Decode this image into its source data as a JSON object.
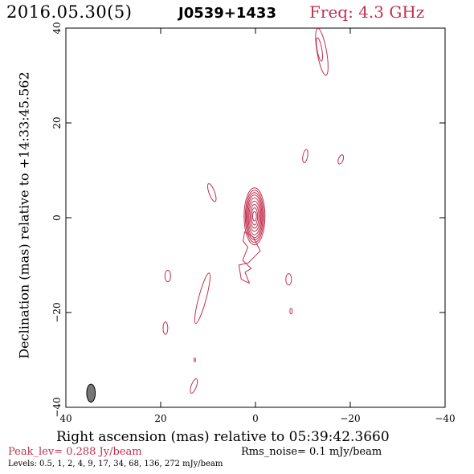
{
  "header": {
    "date": "2016.05.30(5)",
    "source": "J0539+1433",
    "freq": "Freq: 4.3 GHz"
  },
  "footer": {
    "peak": "Peak_lev=  0.288 Jy/beam",
    "rms": "Rms_noise=  0.1 mJy/beam",
    "levels": "Levels: 0.5,   1,   2,   4,   9,   17,   34,   68, 136, 272 mJy/beam"
  },
  "chart_data": {
    "type": "contour",
    "title": "J0539+1433",
    "xlabel": "Right ascension (mas) relative to 05:39:42.3660",
    "ylabel": "Declination (mas) relative to +14:33:45.562",
    "xlim": [
      40,
      -40
    ],
    "ylim": [
      -40,
      40
    ],
    "x_ticks": [
      40,
      20,
      0,
      -20,
      -40
    ],
    "y_ticks": [
      -40,
      -20,
      0,
      20,
      40
    ],
    "peak_jy_per_beam": 0.288,
    "rms_noise_mjy_per_beam": 0.1,
    "levels_mjy_per_beam": [
      0.5,
      1,
      2,
      4,
      9,
      17,
      34,
      68,
      136,
      272
    ],
    "contour_color": "#c2304f",
    "core": {
      "x": 0.2,
      "y": 0.3,
      "rings": [
        {
          "rx": 2.2,
          "ry": 6.0
        },
        {
          "rx": 1.95,
          "ry": 5.5
        },
        {
          "rx": 1.75,
          "ry": 5.0
        },
        {
          "rx": 1.55,
          "ry": 4.5
        },
        {
          "rx": 1.35,
          "ry": 3.9
        },
        {
          "rx": 1.15,
          "ry": 3.2
        },
        {
          "rx": 0.9,
          "ry": 2.5
        },
        {
          "rx": 0.65,
          "ry": 1.8
        },
        {
          "rx": 0.4,
          "ry": 1.0
        }
      ]
    },
    "jet_components": [
      {
        "x": -14.0,
        "y": 35.0,
        "rx": 1.0,
        "ry": 5.0,
        "angle": -10
      },
      {
        "x": -13.5,
        "y": 35.5,
        "rx": 0.5,
        "ry": 2.5,
        "angle": -10
      },
      {
        "x": -10.5,
        "y": 13.0,
        "rx": 0.5,
        "ry": 1.4,
        "angle": 10
      },
      {
        "x": -18.0,
        "y": 12.3,
        "rx": 0.5,
        "ry": 1.0,
        "angle": 20
      },
      {
        "x": 9.2,
        "y": 5.3,
        "rx": 0.6,
        "ry": 2.0,
        "angle": -20
      },
      {
        "x": 18.5,
        "y": -12.3,
        "rx": 0.6,
        "ry": 1.2,
        "angle": 0
      },
      {
        "x": -7.0,
        "y": -13.0,
        "rx": 0.6,
        "ry": 1.2,
        "angle": 0
      },
      {
        "x": 11.2,
        "y": -17.0,
        "rx": 0.8,
        "ry": 5.5,
        "angle": 15
      },
      {
        "x": 19.0,
        "y": -23.3,
        "rx": 0.5,
        "ry": 1.3,
        "angle": 0
      },
      {
        "x": -7.5,
        "y": -19.7,
        "rx": 0.25,
        "ry": 0.6,
        "angle": 0
      },
      {
        "x": 12.8,
        "y": -30.0,
        "rx": 0.15,
        "ry": 0.4,
        "angle": 0
      },
      {
        "x": 13.0,
        "y": -35.5,
        "rx": 0.55,
        "ry": 1.6,
        "angle": 20
      }
    ],
    "extended_emission": [
      [
        0.5,
        -4
      ],
      [
        -1.0,
        -7
      ],
      [
        1.5,
        -9.5
      ],
      [
        3.5,
        -10
      ],
      [
        3.0,
        -13
      ],
      [
        1.3,
        -13.8
      ],
      [
        2.2,
        -11.5
      ],
      [
        0.9,
        -10.7
      ],
      [
        2.7,
        -9.0
      ],
      [
        1.6,
        -6.2
      ],
      [
        2.6,
        -5.0
      ],
      [
        2.3,
        -3.0
      ],
      [
        0.5,
        -4
      ]
    ],
    "beam": {
      "x": 34.7,
      "y": -37.0,
      "major_mas": 3.8,
      "minor_mas": 1.8,
      "pa_deg": 0,
      "fill": "#777777"
    }
  }
}
